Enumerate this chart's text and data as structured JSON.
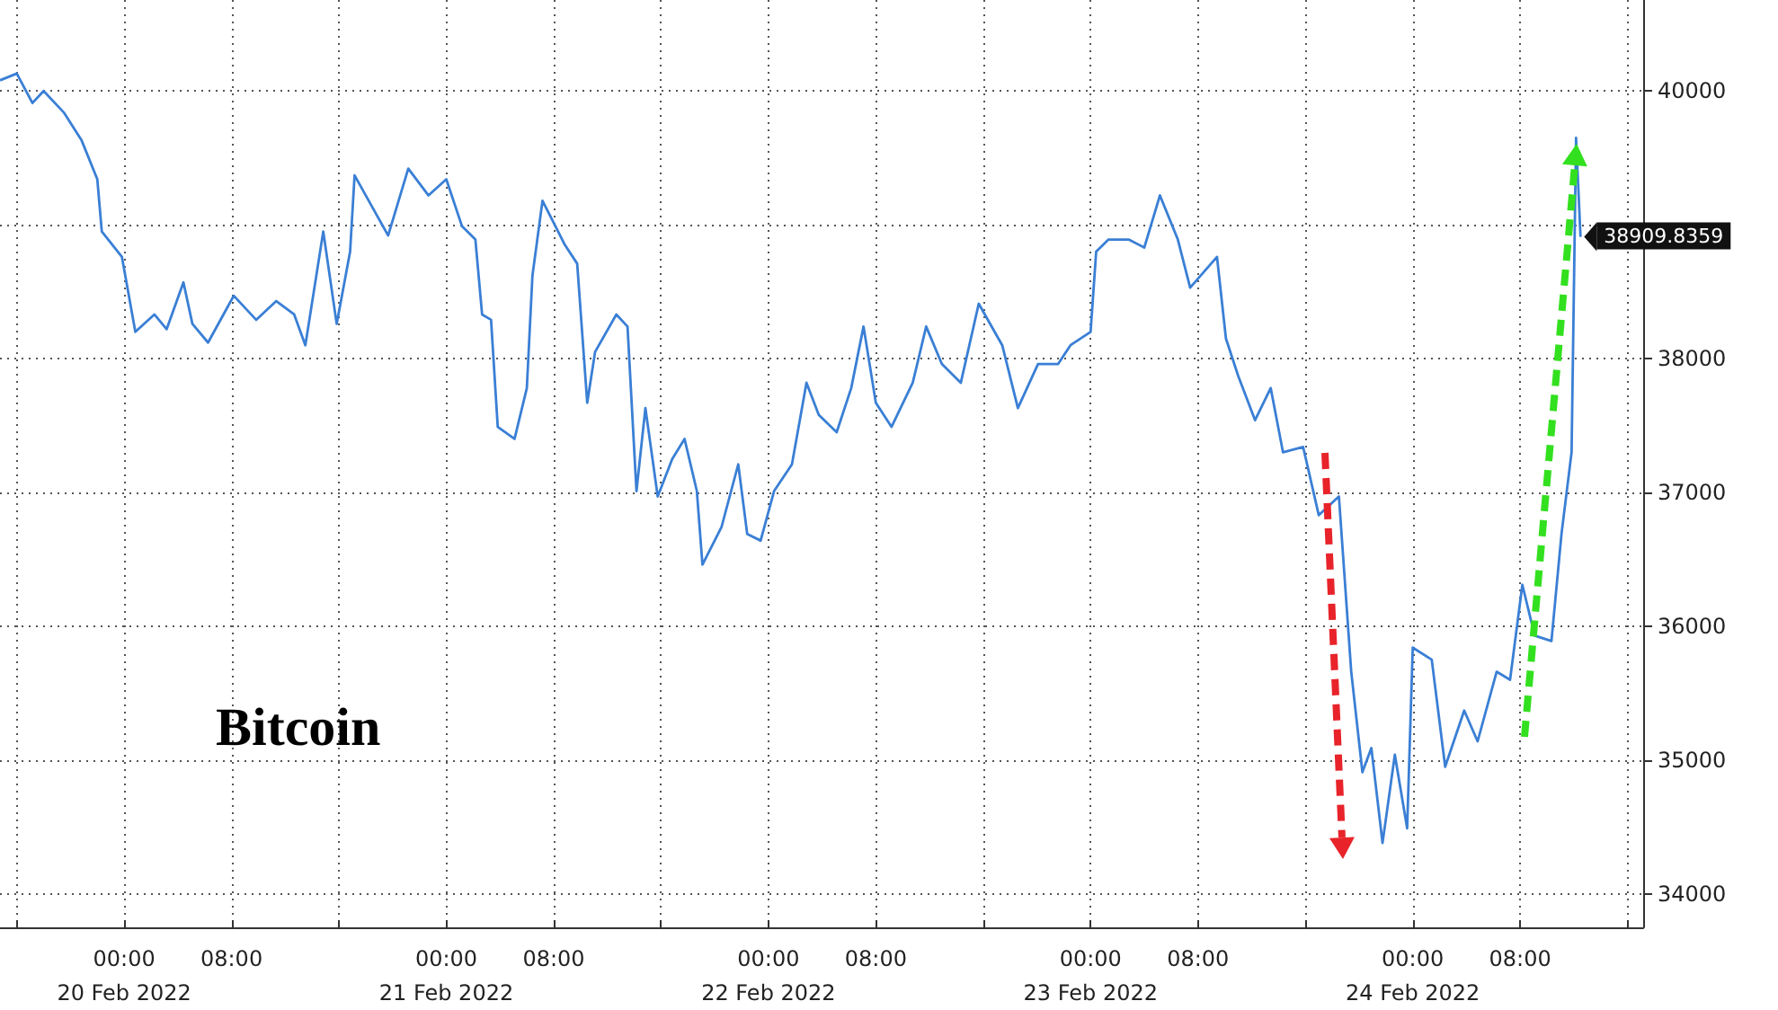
{
  "chart_data": {
    "type": "line",
    "annotations": [
      "Bitcoin",
      {
        "text": "38909.8359",
        "x": "2022-02-24T12:30",
        "y": 38909.8359
      }
    ],
    "x": [
      "2022-02-19T14:45",
      "2022-02-19T16:00",
      "2022-02-19T17:10",
      "2022-02-19T18:00",
      "2022-02-19T19:30",
      "2022-02-19T20:50",
      "2022-02-19T22:00",
      "2022-02-19T22:20",
      "2022-02-19T23:50",
      "2022-02-20T00:50",
      "2022-02-20T02:15",
      "2022-02-20T03:10",
      "2022-02-20T04:25",
      "2022-02-20T05:05",
      "2022-02-20T06:15",
      "2022-02-20T08:10",
      "2022-02-20T09:50",
      "2022-02-20T11:20",
      "2022-02-20T12:40",
      "2022-02-20T13:30",
      "2022-02-20T14:50",
      "2022-02-20T15:50",
      "2022-02-20T16:50",
      "2022-02-20T17:10",
      "2022-02-20T18:30",
      "2022-02-20T19:40",
      "2022-02-20T21:10",
      "2022-02-20T22:40",
      "2022-02-21T00:00",
      "2022-02-21T01:10",
      "2022-02-21T02:10",
      "2022-02-21T02:40",
      "2022-02-21T03:20",
      "2022-02-21T03:50",
      "2022-02-21T05:05",
      "2022-02-21T06:00",
      "2022-02-21T06:25",
      "2022-02-21T07:10",
      "2022-02-21T08:50",
      "2022-02-21T09:45",
      "2022-02-21T10:30",
      "2022-02-21T11:05",
      "2022-02-21T12:40",
      "2022-02-21T13:30",
      "2022-02-21T14:10",
      "2022-02-21T14:50",
      "2022-02-21T15:45",
      "2022-02-21T16:50",
      "2022-02-21T17:45",
      "2022-02-21T18:40",
      "2022-02-21T19:05",
      "2022-02-21T20:30",
      "2022-02-21T21:45",
      "2022-02-21T22:25",
      "2022-02-21T23:25",
      "2022-02-22T00:25",
      "2022-02-22T01:45",
      "2022-02-22T02:50",
      "2022-02-22T03:45",
      "2022-02-22T05:05",
      "2022-02-22T06:10",
      "2022-02-22T07:05",
      "2022-02-22T08:00",
      "2022-02-22T09:10",
      "2022-02-22T10:45",
      "2022-02-22T11:45",
      "2022-02-22T12:55",
      "2022-02-22T14:20",
      "2022-02-22T15:40",
      "2022-02-22T17:25",
      "2022-02-22T18:35",
      "2022-02-22T20:05",
      "2022-02-22T21:35",
      "2022-02-22T22:30",
      "2022-02-23T00:00",
      "2022-02-23T00:25",
      "2022-02-23T01:20",
      "2022-02-23T02:50",
      "2022-02-23T04:00",
      "2022-02-23T05:10",
      "2022-02-23T06:30",
      "2022-02-23T07:25",
      "2022-02-23T09:25",
      "2022-02-23T10:05",
      "2022-02-23T11:00",
      "2022-02-23T12:15",
      "2022-02-23T13:25",
      "2022-02-23T14:20",
      "2022-02-23T15:50",
      "2022-02-23T17:00",
      "2022-02-23T18:30",
      "2022-02-23T19:25",
      "2022-02-23T20:15",
      "2022-02-23T20:55",
      "2022-02-23T21:45",
      "2022-02-23T22:40",
      "2022-02-23T23:35",
      "2022-02-24T00:00",
      "2022-02-24T01:25",
      "2022-02-24T02:25",
      "2022-02-24T03:50",
      "2022-02-24T04:50",
      "2022-02-24T06:15",
      "2022-02-24T07:15",
      "2022-02-24T08:10",
      "2022-02-24T09:05",
      "2022-02-24T10:20",
      "2022-02-24T11:05",
      "2022-02-24T11:50",
      "2022-02-24T12:10",
      "2022-02-24T12:30"
    ],
    "series": [
      {
        "color": "#3a7fd5",
        "values": [
          40080,
          40130,
          39910,
          40000,
          39840,
          39630,
          39340,
          38950,
          38760,
          38200,
          38330,
          38220,
          38570,
          38260,
          38120,
          38470,
          38290,
          38430,
          38330,
          38100,
          38950,
          38260,
          38800,
          39370,
          39130,
          38920,
          39420,
          39220,
          39340,
          38990,
          38890,
          38330,
          38290,
          37490,
          37400,
          37780,
          38620,
          39180,
          38850,
          38710,
          37670,
          38050,
          38330,
          38240,
          37010,
          37630,
          36970,
          37250,
          37400,
          37010,
          36460,
          36740,
          37210,
          36690,
          36640,
          37010,
          37210,
          37820,
          37580,
          37450,
          37780,
          38240,
          37670,
          37490,
          37820,
          38240,
          37960,
          37820,
          38410,
          38100,
          37630,
          37960,
          37960,
          38100,
          38200,
          38800,
          38890,
          38890,
          38830,
          39220,
          38890,
          38530,
          38760,
          38150,
          37870,
          37540,
          37780,
          37300,
          37340,
          36830,
          36970,
          35660,
          34910,
          35090,
          34380,
          35040,
          34490,
          35840,
          35750,
          34950,
          35370,
          35140,
          35660,
          35600,
          36310,
          35930,
          35890,
          36690,
          37300,
          39650,
          38909.8359
        ]
      }
    ],
    "xlim": [
      "2022-02-19T14:45",
      "2022-02-24T17:10"
    ],
    "xticks": [
      {
        "value": "2022-02-19T16:00",
        "label": null
      },
      {
        "value": "2022-02-20T00:00",
        "label": "00:00\n20 Feb 2022"
      },
      {
        "value": "2022-02-20T08:00",
        "label": "08:00"
      },
      {
        "value": "2022-02-20T16:00",
        "label": null
      },
      {
        "value": "2022-02-21T00:00",
        "label": "00:00\n21 Feb 2022"
      },
      {
        "value": "2022-02-21T08:00",
        "label": "08:00"
      },
      {
        "value": "2022-02-21T16:00",
        "label": null
      },
      {
        "value": "2022-02-22T00:00",
        "label": "00:00\n22 Feb 2022"
      },
      {
        "value": "2022-02-22T08:00",
        "label": "08:00"
      },
      {
        "value": "2022-02-22T16:00",
        "label": null
      },
      {
        "value": "2022-02-23T00:00",
        "label": "00:00\n23 Feb 2022"
      },
      {
        "value": "2022-02-23T08:00",
        "label": "08:00"
      },
      {
        "value": "2022-02-23T16:00",
        "label": null
      },
      {
        "value": "2022-02-24T00:00",
        "label": "00:00\n24 Feb 2022"
      },
      {
        "value": "2022-02-24T08:00",
        "label": "08:00"
      },
      {
        "value": "2022-02-24T16:00",
        "label": null
      }
    ],
    "ylim": [
      33750,
      40680
    ],
    "yticks": [
      34000,
      35000,
      36000,
      37000,
      38000,
      {
        "value": 39000,
        "label": null
      },
      40000
    ],
    "grid": true,
    "marker": "none",
    "line_style": "solid"
  }
}
